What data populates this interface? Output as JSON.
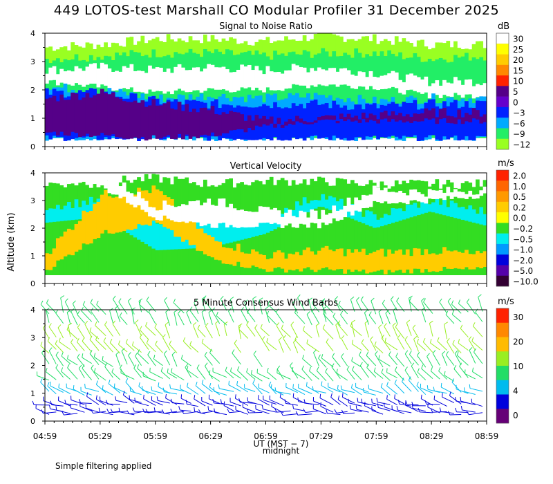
{
  "title": "449 LOTOS-test Marshall CO Modular Profiler 31 December 2025",
  "footnote": "Simple filtering applied",
  "y_axis_label": "Altitude (km)",
  "x_axis_label": "UT  (MST − 7)",
  "x_axis_sublabel": "midnight",
  "x_ticks": [
    "04:59",
    "05:29",
    "05:59",
    "06:29",
    "06:59",
    "07:29",
    "07:59",
    "08:29",
    "08:59"
  ],
  "y_ticks": [
    "0",
    "1",
    "2",
    "3",
    "4"
  ],
  "chart_data": [
    {
      "type": "heatmap",
      "title": "Signal to Noise Ratio",
      "colorbar_unit": "dB",
      "colorbar_labels": [
        "30",
        "25",
        "20",
        "15",
        "10",
        "5",
        "0",
        "−3",
        "−6",
        "−9",
        "−12"
      ],
      "colorbar_colors": [
        "#ffffff",
        "#ffff00",
        "#ffcc00",
        "#ff8800",
        "#ff2200",
        "#550088",
        "#6600cc",
        "#0022ff",
        "#00aaff",
        "#22ee66",
        "#99ff22"
      ],
      "xlabel": "UT (MST - 7)",
      "ylabel": "Altitude (km)",
      "xlim": [
        "04:59",
        "08:59"
      ],
      "ylim": [
        0,
        4
      ],
      "layers": [
        {
          "label": "-12 to -9",
          "color": "#99ff22",
          "bottom": [
            0.3,
            0.3,
            0.3,
            0.3,
            0.3,
            0.3,
            0.3,
            0.3,
            0.3
          ],
          "top": [
            3.5,
            3.6,
            3.8,
            3.8,
            3.7,
            3.9,
            3.8,
            3.6,
            3.6
          ]
        },
        {
          "label": "-9 to -6",
          "color": "#22ee66",
          "bottom": [
            0.3,
            0.3,
            0.3,
            0.3,
            0.3,
            0.3,
            0.3,
            0.3,
            0.3
          ],
          "top": [
            3.1,
            3.2,
            3.3,
            3.3,
            3.2,
            3.3,
            3.3,
            3.1,
            3.2
          ]
        },
        {
          "label": "gap",
          "color": "#ffffff",
          "bottom": [
            2.3,
            2.1,
            1.9,
            2.0,
            2.0,
            2.2,
            2.1,
            1.8,
            1.8
          ],
          "top": [
            2.7,
            2.8,
            2.7,
            2.8,
            2.7,
            2.8,
            2.6,
            2.3,
            2.3
          ]
        },
        {
          "label": "-6 to -3",
          "color": "#00aaff",
          "bottom": [
            0.3,
            0.3,
            0.3,
            0.3,
            0.3,
            0.3,
            0.3,
            0.3,
            0.3
          ],
          "top": [
            2.1,
            2.0,
            1.7,
            1.8,
            1.7,
            1.8,
            1.6,
            1.7,
            1.7
          ]
        },
        {
          "label": "-3 to 0",
          "color": "#0022ff",
          "bottom": [
            0.3,
            0.3,
            0.3,
            0.3,
            0.3,
            0.3,
            0.3,
            0.3,
            0.3
          ],
          "top": [
            1.9,
            1.9,
            1.6,
            1.5,
            1.5,
            1.5,
            1.4,
            1.5,
            1.5
          ]
        },
        {
          "label": "0 to 5",
          "color": "#550088",
          "bottom": [
            0.5,
            0.4,
            0.3,
            0.4,
            0.7,
            0.9,
            0.9,
            0.9,
            0.9
          ],
          "top": [
            1.7,
            1.9,
            1.5,
            1.3,
            0.9,
            1.0,
            1.1,
            1.2,
            1.2
          ]
        }
      ]
    },
    {
      "type": "heatmap",
      "title": "Vertical Velocity",
      "colorbar_unit": "m/s",
      "colorbar_labels": [
        "2.0",
        "1.0",
        "0.5",
        "0.2",
        "0.0",
        "−0.2",
        "−0.5",
        "−1.0",
        "−2.0",
        "−5.0",
        "−10.0"
      ],
      "colorbar_colors": [
        "#ff2200",
        "#ff6600",
        "#ff9900",
        "#ffcc00",
        "#ffff00",
        "#33dd22",
        "#00eeee",
        "#0099ff",
        "#0000dd",
        "#5500aa",
        "#330033"
      ],
      "xlabel": "UT (MST - 7)",
      "ylabel": "Altitude (km)",
      "xlim": [
        "04:59",
        "08:59"
      ],
      "ylim": [
        0,
        4
      ],
      "layers": [
        {
          "label": "0.0 to -0.2",
          "color": "#33dd22",
          "bottom": [
            0.3,
            0.3,
            0.3,
            0.3,
            0.3,
            0.3,
            0.3,
            0.3,
            0.3
          ],
          "top": [
            3.6,
            3.7,
            3.8,
            3.6,
            3.7,
            3.7,
            3.6,
            3.6,
            3.6
          ]
        },
        {
          "label": "-0.2 to -0.5",
          "color": "#00eeee",
          "bottom": [
            2.2,
            2.4,
            1.2,
            1.3,
            1.8,
            2.8,
            2.0,
            2.6,
            2.1
          ],
          "top": [
            2.8,
            3.0,
            2.3,
            2.4,
            2.4,
            3.2,
            2.4,
            3.0,
            2.6
          ]
        },
        {
          "label": "0.2 to 0.0",
          "color": "#ffcc00",
          "bottom": [
            0.5,
            1.8,
            2.2,
            0.9,
            0.5,
            0.5,
            0.4,
            0.5,
            0.5
          ],
          "top": [
            1.1,
            3.2,
            3.4,
            1.6,
            1.0,
            1.2,
            1.1,
            1.2,
            1.0
          ]
        },
        {
          "label": "gap",
          "color": "#ffffff",
          "bottom": [
            3.8,
            3.5,
            2.4,
            2.1,
            2.1,
            2.1,
            2.9,
            3.0,
            3.2
          ],
          "top": [
            4.0,
            4.0,
            2.8,
            3.0,
            2.6,
            2.5,
            3.4,
            3.3,
            3.4
          ]
        }
      ]
    },
    {
      "type": "wind_barbs",
      "title": "5 Minute Consensus Wind Barbs",
      "colorbar_unit": "m/s",
      "colorbar_labels": [
        "30",
        "20",
        "10",
        "4",
        "0"
      ],
      "colorbar_colors": [
        "#ff2200",
        "#ff8800",
        "#ffbb00",
        "#99ee22",
        "#22dd66",
        "#00bbee",
        "#0000dd",
        "#660077"
      ],
      "xlabel": "UT (MST - 7)",
      "ylabel": "Altitude (km)",
      "xlim": [
        "04:59",
        "08:59"
      ],
      "ylim": [
        0,
        4
      ],
      "altitude_bands": [
        {
          "altitude_km": 0.3,
          "speed_ms": 4,
          "direction_deg": 280,
          "color": "#0000dd"
        },
        {
          "altitude_km": 0.6,
          "speed_ms": 5,
          "direction_deg": 290,
          "color": "#0000dd"
        },
        {
          "altitude_km": 1.0,
          "speed_ms": 6,
          "direction_deg": 300,
          "color": "#00bbee"
        },
        {
          "altitude_km": 1.5,
          "speed_ms": 8,
          "direction_deg": 310,
          "color": "#22dd66"
        },
        {
          "altitude_km": 2.0,
          "speed_ms": 10,
          "direction_deg": 320,
          "color": "#22dd66"
        },
        {
          "altitude_km": 2.5,
          "speed_ms": 10,
          "direction_deg": 320,
          "color": "#99ee22"
        },
        {
          "altitude_km": 3.0,
          "speed_ms": 10,
          "direction_deg": 330,
          "color": "#99ee22"
        },
        {
          "altitude_km": 3.5,
          "speed_ms": 9,
          "direction_deg": 330,
          "color": "#22dd66"
        },
        {
          "altitude_km": 3.9,
          "speed_ms": 8,
          "direction_deg": 330,
          "color": "#22dd66"
        }
      ]
    }
  ]
}
